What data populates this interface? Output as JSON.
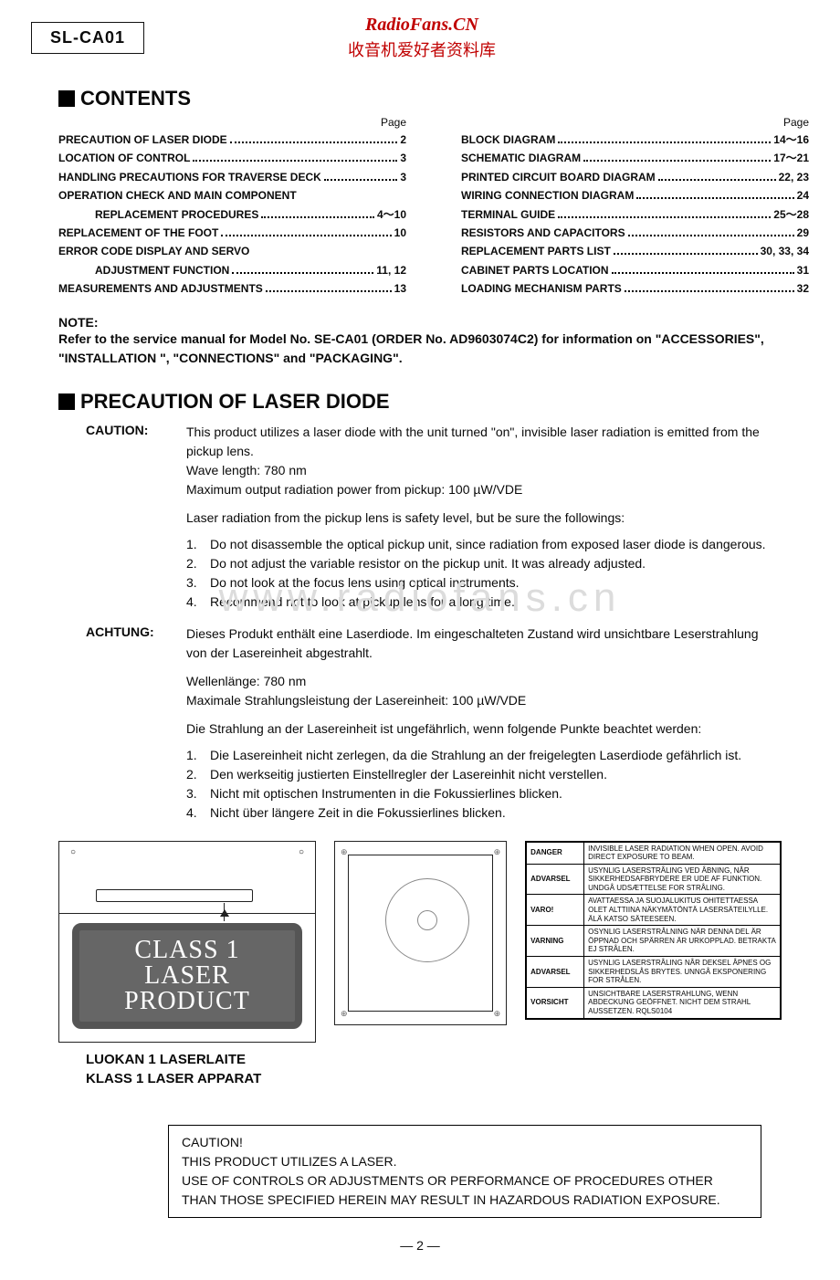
{
  "header": {
    "model": "SL-CA01",
    "watermark_line1": "RadioFans.CN",
    "watermark_line2": "收音机爱好者资料库"
  },
  "sections": {
    "contents_heading": "CONTENTS",
    "precaution_heading": "PRECAUTION OF LASER DIODE"
  },
  "toc": {
    "page_label": "Page",
    "left": [
      {
        "title": "PRECAUTION OF LASER DIODE",
        "page": "2",
        "indent": false
      },
      {
        "title": "LOCATION OF CONTROL",
        "page": "3",
        "indent": false
      },
      {
        "title": "HANDLING PRECAUTIONS FOR TRAVERSE DECK",
        "page": "3",
        "indent": false
      },
      {
        "title": "OPERATION CHECK AND MAIN COMPONENT",
        "page": "",
        "indent": false
      },
      {
        "title": "REPLACEMENT PROCEDURES",
        "page": "4～10",
        "indent": true
      },
      {
        "title": "REPLACEMENT OF THE FOOT",
        "page": "10",
        "indent": false
      },
      {
        "title": "ERROR CODE DISPLAY AND SERVO",
        "page": "",
        "indent": false
      },
      {
        "title": "ADJUSTMENT FUNCTION",
        "page": "11, 12",
        "indent": true
      },
      {
        "title": "MEASUREMENTS AND ADJUSTMENTS",
        "page": "13",
        "indent": false
      }
    ],
    "right": [
      {
        "title": "BLOCK DIAGRAM",
        "page": "14～16",
        "indent": false
      },
      {
        "title": "SCHEMATIC DIAGRAM",
        "page": "17～21",
        "indent": false
      },
      {
        "title": "PRINTED CIRCUIT BOARD DIAGRAM",
        "page": "22, 23",
        "indent": false
      },
      {
        "title": "WIRING CONNECTION DIAGRAM",
        "page": "24",
        "indent": false
      },
      {
        "title": "TERMINAL GUIDE",
        "page": "25～28",
        "indent": false
      },
      {
        "title": "RESISTORS AND CAPACITORS",
        "page": "29",
        "indent": false
      },
      {
        "title": "REPLACEMENT PARTS LIST",
        "page": "30, 33, 34",
        "indent": false
      },
      {
        "title": "CABINET PARTS LOCATION",
        "page": "31",
        "indent": false
      },
      {
        "title": "LOADING MECHANISM PARTS",
        "page": "32",
        "indent": false
      }
    ]
  },
  "note": {
    "head": "NOTE:",
    "body": "Refer to the service manual for Model No. SE-CA01 (ORDER No. AD9603074C2) for information on \"ACCESSORIES\", \"INSTALLATION \", \"CONNECTIONS\" and \"PACKAGING\"."
  },
  "caution_en": {
    "label": "CAUTION:",
    "intro": "This product utilizes a laser diode with the unit turned \"on\", invisible laser radiation is emitted from the pickup lens.",
    "wave": "Wave length: 780 nm",
    "power": "Maximum output radiation power from pickup: 100 µW/VDE",
    "sub": "Laser radiation from the pickup lens is safety level, but be sure the followings:",
    "items": [
      "Do not disassemble the optical pickup unit, since radiation from exposed laser diode is dangerous.",
      "Do not adjust the variable resistor on the pickup unit.   It was already adjusted.",
      "Do not look at the focus lens using optical instruments.",
      "Recommend not to look at pickup lens for a long time."
    ]
  },
  "caution_de": {
    "label": "ACHTUNG:",
    "intro": "Dieses Produkt enthält eine Laserdiode.  Im eingeschalteten Zustand wird unsichtbare Leserstrahlung von der Lasereinheit abgestrahlt.",
    "wave": "Wellenlänge: 780 nm",
    "power": "Maximale Strahlungsleistung der Lasereinheit: 100 µW/VDE",
    "sub": "Die Strahlung an der Lasereinheit ist ungefährlich, wenn folgende Punkte beachtet werden:",
    "items": [
      "Die Lasereinheit nicht zerlegen, da die Strahlung an der freigelegten Laserdiode gefährlich ist.",
      "Den werkseitig justierten Einstellregler der Lasereinhit nicht verstellen.",
      "Nicht mit optischen Instrumenten in die Fokussierlines blicken.",
      "Nicht über längere Zeit in die Fokussierlines blicken."
    ]
  },
  "watermark_center": "www.radiofans.cn",
  "fig1": {
    "badge_l1": "CLASS 1",
    "badge_l2": "LASER PRODUCT",
    "cap_l1": "LUOKAN 1 LASERLAITE",
    "cap_l2": "KLASS 1 LASER APPARAT"
  },
  "warn_table": [
    {
      "l": "DANGER",
      "r": "INVISIBLE LASER RADIATION WHEN OPEN. AVOID DIRECT EXPOSURE TO BEAM."
    },
    {
      "l": "ADVARSEL",
      "r": "USYNLIG LASERSTRÅLING VED ÅBNING, NÅR SIKKERHEDSAFBRYDERE ER UDE AF FUNKTION. UNDGÅ UDSÆTTELSE FOR STRÅLING."
    },
    {
      "l": "VARO!",
      "r": "AVATTAESSA JA SUOJALUKITUS OHITETTAESSA OLET ALTTIINA NÄKYMÄTÖNTÄ LASERSÄTEILYLLE. ÄLÄ KATSO SÄTEESEEN."
    },
    {
      "l": "VARNING",
      "r": "OSYNLIG LASERSTRÅLNING NÄR DENNA DEL ÄR ÖPPNAD OCH SPÄRREN ÄR URKOPPLAD. BETRAKTA EJ STRÅLEN."
    },
    {
      "l": "ADVARSEL",
      "r": "USYNLIG LASERSTRÅLING NÅR DEKSEL ÅPNES OG SIKKERHEDSLÅS BRYTES. UNNGÅ EKSPONERING FOR STRÅLEN."
    },
    {
      "l": "VORSICHT",
      "r": "UNSICHTBARE LASERSTRAHLUNG, WENN ABDECKUNG GEÖFFNET. NICHT DEM STRAHL AUSSETZEN.                RQLS0104"
    }
  ],
  "caution_box": {
    "l1": "CAUTION!",
    "l2": "THIS PRODUCT UTILIZES A LASER.",
    "l3": "USE OF CONTROLS OR ADJUSTMENTS OR PERFORMANCE OF PROCEDURES OTHER THAN THOSE SPECIFIED HEREIN MAY RESULT IN HAZARDOUS RADIATION EXPOSURE."
  },
  "page_number": "— 2 —"
}
